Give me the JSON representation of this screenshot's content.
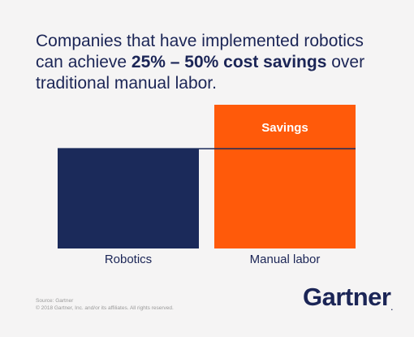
{
  "headline": {
    "part1": "Companies that have implemented robotics can achieve ",
    "bold": "25% – 50% cost savings",
    "part2": " over traditional manual labor."
  },
  "chart_data": {
    "type": "bar",
    "categories": [
      "Robotics",
      "Manual labor"
    ],
    "series": [
      {
        "name": "",
        "values": [
          1,
          1
        ]
      },
      {
        "name": "Savings",
        "values": [
          0,
          0.44
        ]
      }
    ],
    "segment_labels": [
      "",
      "Savings"
    ],
    "stacked": true,
    "ylim": [
      0,
      1.44
    ],
    "title": "",
    "xlabel": "",
    "ylabel": "",
    "grid": false,
    "colors": {
      "robotics": "#1b2a5a",
      "manual": "#ff5a0a",
      "line": "#1b2a5a"
    }
  },
  "footer": {
    "source_line1": "Source: Gartner",
    "source_line2": "© 2018 Gartner, Inc. and/or its affiliates. All rights reserved.",
    "logo": "Gartner",
    "logo_dot": "."
  }
}
